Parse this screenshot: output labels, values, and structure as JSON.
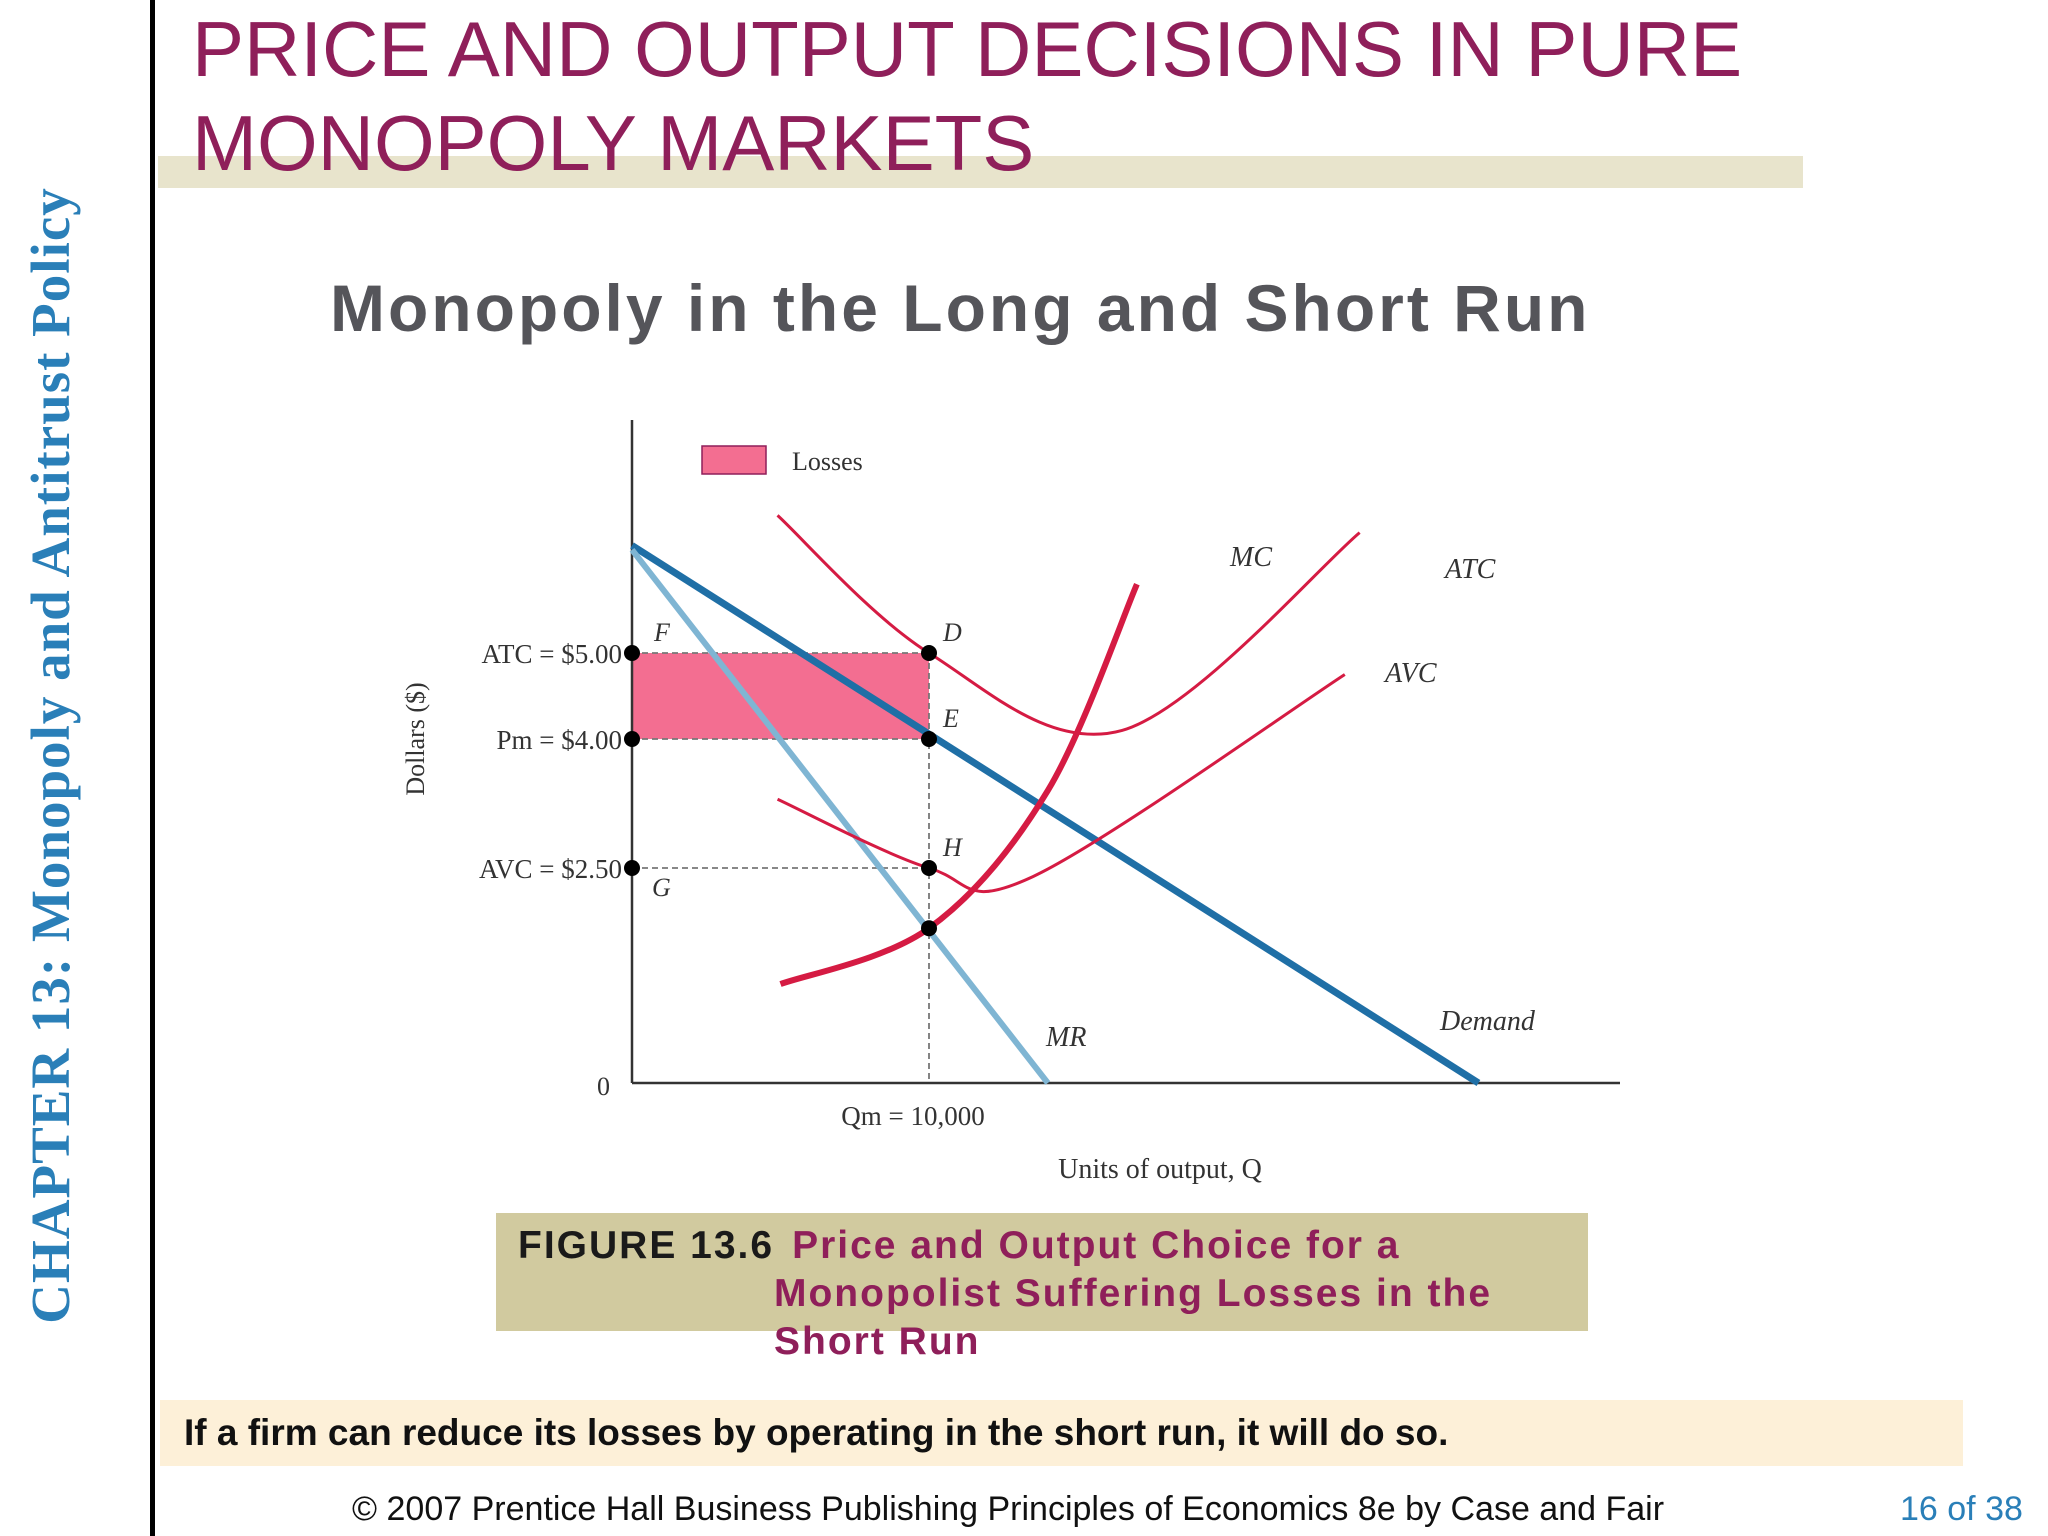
{
  "slide": {
    "title": "PRICE AND OUTPUT DECISIONS IN PURE MONOPOLY MARKETS",
    "side_label": "CHAPTER 13:  Monopoly and Antitrust Policy",
    "chart_heading": "Monopoly in the Long and Short Run"
  },
  "caption": {
    "figure_number": "FIGURE 13.6",
    "title_line1": "Price and Output Choice for a",
    "title_line2": "Monopolist Suffering Losses in the",
    "title_line3": "Short Run"
  },
  "note": "If a firm can reduce its losses by operating in the short run, it will do so.",
  "footer": {
    "copyright": "© 2007 Prentice Hall Business Publishing   Principles of Economics 8e by Case and Fair",
    "page": "16 of 38"
  },
  "colors": {
    "title": "#8f1f5a",
    "side_label": "#2a7fb8",
    "demand": "#1f6fa6",
    "mr": "#7fb5d3",
    "cost_curves": "#d51b43",
    "losses_fill": "#f36e91"
  },
  "chart_data": {
    "type": "line",
    "ylabel": "Dollars ($)",
    "xlabel": "Units of output, Q",
    "origin_label": "0",
    "legend": {
      "label": "Losses",
      "position": "top-left"
    },
    "x_ticks": [
      {
        "x": 10000,
        "label": "Qm = 10,000"
      }
    ],
    "y_ticks": [
      {
        "y": 5.0,
        "label": "ATC = $5.00"
      },
      {
        "y": 4.0,
        "label": "Pm = $4.00"
      },
      {
        "y": 2.5,
        "label": "AVC = $2.50"
      }
    ],
    "series": [
      {
        "name": "Demand",
        "points": [
          [
            0,
            6.25
          ],
          [
            28500,
            0
          ]
        ]
      },
      {
        "name": "MR",
        "points": [
          [
            0,
            6.2
          ],
          [
            14000,
            0
          ]
        ]
      },
      {
        "name": "MC",
        "points": [
          [
            5000,
            1.15
          ],
          [
            10000,
            1.8
          ],
          [
            14000,
            3.4
          ],
          [
            17000,
            5.8
          ]
        ]
      },
      {
        "name": "ATC",
        "points": [
          [
            4900,
            6.6
          ],
          [
            10000,
            5.0
          ],
          [
            16500,
            4.1
          ],
          [
            24500,
            6.4
          ]
        ]
      },
      {
        "name": "AVC",
        "points": [
          [
            4900,
            3.3
          ],
          [
            10000,
            2.5
          ],
          [
            13500,
            2.4
          ],
          [
            24000,
            4.75
          ]
        ]
      }
    ],
    "points": [
      {
        "label": "F",
        "x": 0,
        "y": 5.0
      },
      {
        "label": "D",
        "x": 10000,
        "y": 5.0
      },
      {
        "label": "E",
        "x": 10000,
        "y": 4.0
      },
      {
        "label": "H",
        "x": 10000,
        "y": 2.5
      },
      {
        "label": "G",
        "x": 0,
        "y": 2.5
      },
      {
        "label": "",
        "x": 0,
        "y": 4.0
      },
      {
        "label": "",
        "x": 10000,
        "y": 1.8
      }
    ],
    "losses_area": {
      "x": [
        0,
        10000
      ],
      "y": [
        4.0,
        5.0
      ]
    },
    "xlim": [
      0,
      33000
    ],
    "ylim": [
      0,
      7.5
    ]
  }
}
